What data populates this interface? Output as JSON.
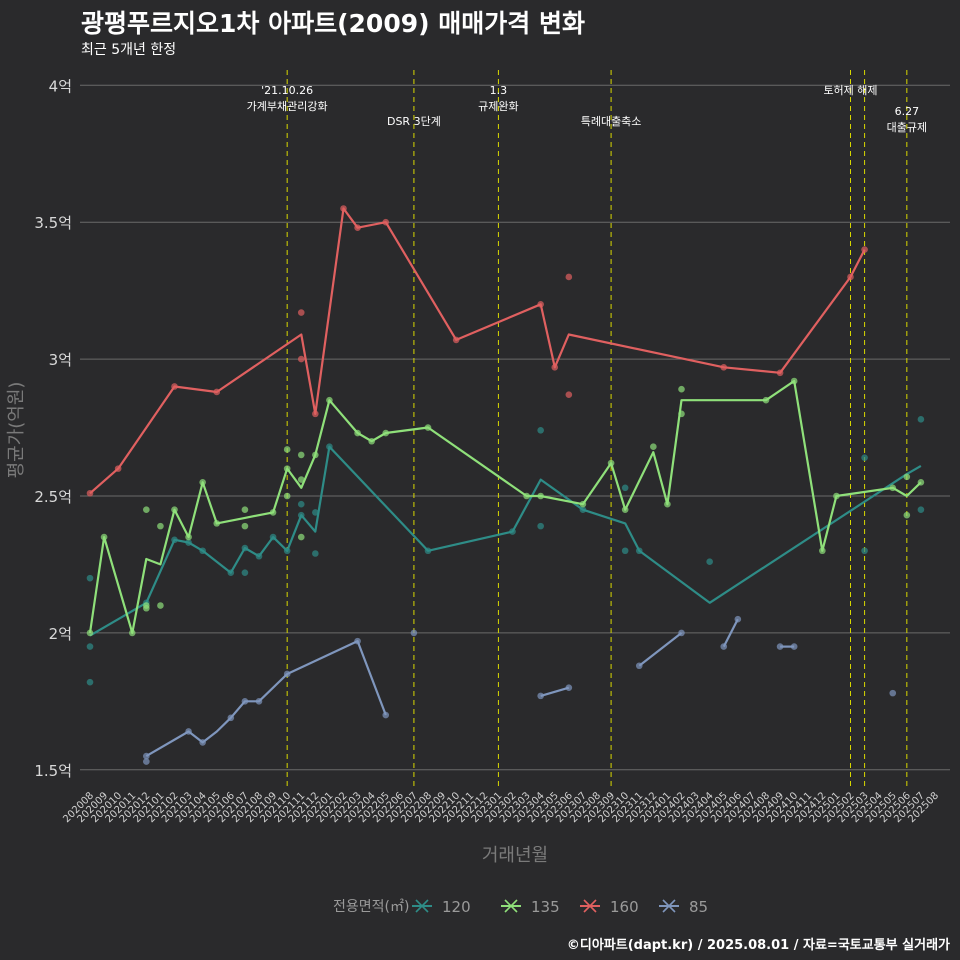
{
  "chart_data": {
    "type": "line",
    "title": "광평푸르지오1차 아파트(2009) 매매가격 변화",
    "subtitle": "최근 5개년 한정",
    "xlabel": "거래년월",
    "ylabel": "평균가(억원)",
    "caption": "©디아파트(dapt.kr) / 2025.08.01 / 자료=국토교통부 실거래가",
    "grid": true,
    "legend": {
      "title": "전용면적(㎡)",
      "position": "bottom"
    },
    "ylim": [
      1.4,
      4.05
    ],
    "yticks": [
      {
        "value": 1.5,
        "label": "1.5억"
      },
      {
        "value": 2.0,
        "label": "2억"
      },
      {
        "value": 2.5,
        "label": "2.5억"
      },
      {
        "value": 3.0,
        "label": "3억"
      },
      {
        "value": 3.5,
        "label": "3.5억"
      },
      {
        "value": 4.0,
        "label": "4억"
      }
    ],
    "x_categories": [
      "202008",
      "202009",
      "202010",
      "202011",
      "202012",
      "202101",
      "202102",
      "202103",
      "202104",
      "202105",
      "202106",
      "202107",
      "202108",
      "202109",
      "202110",
      "202111",
      "202112",
      "202201",
      "202202",
      "202203",
      "202204",
      "202205",
      "202206",
      "202207",
      "202208",
      "202209",
      "202210",
      "202211",
      "202212",
      "202301",
      "202302",
      "202303",
      "202304",
      "202305",
      "202306",
      "202307",
      "202308",
      "202309",
      "202310",
      "202311",
      "202312",
      "202401",
      "202402",
      "202403",
      "202404",
      "202405",
      "202406",
      "202407",
      "202408",
      "202409",
      "202410",
      "202411",
      "202412",
      "202501",
      "202502",
      "202503",
      "202504",
      "202505",
      "202506",
      "202507",
      "202508"
    ],
    "events": [
      {
        "x": "202110",
        "labels": [
          "'21.10.26",
          "가계부채관리강화"
        ],
        "level": 1
      },
      {
        "x": "202207",
        "labels": [
          "DSR 3단계"
        ],
        "level": 2
      },
      {
        "x": "202301",
        "labels": [
          "1.3",
          "규제완화"
        ],
        "level": 1
      },
      {
        "x": "202309",
        "labels": [
          "특례대출축소"
        ],
        "level": 2
      },
      {
        "x": "202502",
        "labels": [
          "토허제 해제"
        ],
        "level": 1
      },
      {
        "x": "202503",
        "labels": [],
        "level": 1
      },
      {
        "x": "202506",
        "labels": [
          "6.27",
          "대출규제"
        ],
        "level": 3
      }
    ],
    "series": [
      {
        "name": "120",
        "color": "#2e8c87",
        "x": [
          "202008",
          "202012",
          "202102",
          "202103",
          "202104",
          "202106",
          "202107",
          "202108",
          "202109",
          "202110",
          "202111",
          "202112",
          "202201",
          "202208",
          "202302",
          "202304",
          "202307",
          "202310",
          "202311",
          "202404",
          "202506",
          "202507"
        ],
        "values": [
          1.99,
          2.11,
          2.34,
          2.33,
          2.3,
          2.22,
          2.31,
          2.28,
          2.35,
          2.3,
          2.43,
          2.37,
          2.68,
          2.3,
          2.37,
          2.56,
          2.45,
          2.4,
          2.3,
          2.11,
          2.58,
          2.61
        ],
        "points": [
          [
            "202008",
            1.82
          ],
          [
            "202008",
            1.95
          ],
          [
            "202008",
            2.2
          ],
          [
            "202012",
            2.11
          ],
          [
            "202102",
            2.34
          ],
          [
            "202103",
            2.33
          ],
          [
            "202104",
            2.3
          ],
          [
            "202106",
            2.22
          ],
          [
            "202107",
            2.22
          ],
          [
            "202107",
            2.31
          ],
          [
            "202108",
            2.28
          ],
          [
            "202109",
            2.35
          ],
          [
            "202110",
            2.3
          ],
          [
            "202111",
            2.47
          ],
          [
            "202111",
            2.43
          ],
          [
            "202112",
            2.44
          ],
          [
            "202112",
            2.29
          ],
          [
            "202201",
            2.68
          ],
          [
            "202208",
            2.3
          ],
          [
            "202302",
            2.37
          ],
          [
            "202304",
            2.74
          ],
          [
            "202304",
            2.39
          ],
          [
            "202307",
            2.45
          ],
          [
            "202310",
            2.53
          ],
          [
            "202310",
            2.3
          ],
          [
            "202311",
            2.3
          ],
          [
            "202404",
            2.26
          ],
          [
            "202503",
            2.64
          ],
          [
            "202503",
            2.3
          ],
          [
            "202507",
            2.78
          ],
          [
            "202507",
            2.45
          ]
        ]
      },
      {
        "name": "135",
        "color": "#8fe07a",
        "x": [
          "202008",
          "202009",
          "202011",
          "202012",
          "202101",
          "202102",
          "202103",
          "202104",
          "202105",
          "202107",
          "202109",
          "202110",
          "202111",
          "202112",
          "202201",
          "202203",
          "202204",
          "202205",
          "202208",
          "202303",
          "202304",
          "202307",
          "202309",
          "202310",
          "202312",
          "202401",
          "202402",
          "202408",
          "202410",
          "202412",
          "202501",
          "202505",
          "202506",
          "202507"
        ],
        "values": [
          2.0,
          2.35,
          2.0,
          2.27,
          2.25,
          2.45,
          2.35,
          2.55,
          2.4,
          2.42,
          2.44,
          2.6,
          2.53,
          2.65,
          2.85,
          2.73,
          2.7,
          2.73,
          2.75,
          2.5,
          2.5,
          2.47,
          2.62,
          2.45,
          2.66,
          2.47,
          2.85,
          2.85,
          2.92,
          2.3,
          2.5,
          2.53,
          2.5,
          2.55
        ],
        "points": [
          [
            "202008",
            2.0
          ],
          [
            "202009",
            2.35
          ],
          [
            "202011",
            2.0
          ],
          [
            "202012",
            2.1
          ],
          [
            "202012",
            2.09
          ],
          [
            "202012",
            2.45
          ],
          [
            "202101",
            2.39
          ],
          [
            "202101",
            2.1
          ],
          [
            "202102",
            2.45
          ],
          [
            "202103",
            2.35
          ],
          [
            "202104",
            2.55
          ],
          [
            "202105",
            2.4
          ],
          [
            "202107",
            2.39
          ],
          [
            "202107",
            2.45
          ],
          [
            "202109",
            2.44
          ],
          [
            "202110",
            2.67
          ],
          [
            "202110",
            2.5
          ],
          [
            "202110",
            2.6
          ],
          [
            "202111",
            2.35
          ],
          [
            "202111",
            2.56
          ],
          [
            "202111",
            2.65
          ],
          [
            "202112",
            2.65
          ],
          [
            "202201",
            2.85
          ],
          [
            "202203",
            2.73
          ],
          [
            "202204",
            2.7
          ],
          [
            "202205",
            2.73
          ],
          [
            "202208",
            2.75
          ],
          [
            "202303",
            2.5
          ],
          [
            "202304",
            2.5
          ],
          [
            "202307",
            2.47
          ],
          [
            "202309",
            2.62
          ],
          [
            "202310",
            2.45
          ],
          [
            "202312",
            2.68
          ],
          [
            "202401",
            2.47
          ],
          [
            "202402",
            2.89
          ],
          [
            "202402",
            2.8
          ],
          [
            "202408",
            2.85
          ],
          [
            "202410",
            2.92
          ],
          [
            "202412",
            2.3
          ],
          [
            "202501",
            2.5
          ],
          [
            "202505",
            2.53
          ],
          [
            "202506",
            2.57
          ],
          [
            "202506",
            2.43
          ],
          [
            "202507",
            2.55
          ]
        ]
      },
      {
        "name": "160",
        "color": "#e06060",
        "x": [
          "202008",
          "202010",
          "202102",
          "202105",
          "202111",
          "202112",
          "202202",
          "202203",
          "202205",
          "202210",
          "202304",
          "202305",
          "202306",
          "202405",
          "202409",
          "202502",
          "202503"
        ],
        "values": [
          2.51,
          2.6,
          2.9,
          2.88,
          3.09,
          2.8,
          3.55,
          3.48,
          3.5,
          3.07,
          3.2,
          2.97,
          3.09,
          2.97,
          2.95,
          3.3,
          3.4
        ],
        "points": [
          [
            "202008",
            2.51
          ],
          [
            "202010",
            2.6
          ],
          [
            "202102",
            2.9
          ],
          [
            "202105",
            2.88
          ],
          [
            "202111",
            3.17
          ],
          [
            "202111",
            3.0
          ],
          [
            "202112",
            2.8
          ],
          [
            "202202",
            3.55
          ],
          [
            "202203",
            3.48
          ],
          [
            "202205",
            3.5
          ],
          [
            "202210",
            3.07
          ],
          [
            "202304",
            3.2
          ],
          [
            "202305",
            2.97
          ],
          [
            "202306",
            3.3
          ],
          [
            "202306",
            2.87
          ],
          [
            "202405",
            2.97
          ],
          [
            "202409",
            2.95
          ],
          [
            "202502",
            3.3
          ],
          [
            "202503",
            3.4
          ]
        ]
      },
      {
        "name": "85",
        "color": "#7f96bd",
        "segments": [
          {
            "x": [
              "202012",
              "202103",
              "202104",
              "202105",
              "202106",
              "202107",
              "202108",
              "202110",
              "202203",
              "202205"
            ],
            "values": [
              1.55,
              1.64,
              1.6,
              1.64,
              1.69,
              1.75,
              1.75,
              1.85,
              1.97,
              1.7
            ]
          },
          {
            "x": [
              "202304",
              "202306"
            ],
            "values": [
              1.77,
              1.8
            ]
          },
          {
            "x": [
              "202311",
              "202402"
            ],
            "values": [
              1.88,
              2.0
            ]
          },
          {
            "x": [
              "202405",
              "202406"
            ],
            "values": [
              1.95,
              2.05
            ]
          },
          {
            "x": [
              "202409",
              "202410"
            ],
            "values": [
              1.95,
              1.95
            ]
          }
        ],
        "points": [
          [
            "202012",
            1.53
          ],
          [
            "202012",
            1.55
          ],
          [
            "202103",
            1.64
          ],
          [
            "202104",
            1.6
          ],
          [
            "202106",
            1.69
          ],
          [
            "202107",
            1.75
          ],
          [
            "202108",
            1.75
          ],
          [
            "202110",
            1.85
          ],
          [
            "202203",
            1.97
          ],
          [
            "202205",
            1.7
          ],
          [
            "202207",
            2.0
          ],
          [
            "202304",
            1.77
          ],
          [
            "202306",
            1.8
          ],
          [
            "202311",
            1.88
          ],
          [
            "202402",
            2.0
          ],
          [
            "202405",
            1.95
          ],
          [
            "202406",
            2.05
          ],
          [
            "202409",
            1.95
          ],
          [
            "202410",
            1.95
          ],
          [
            "202505",
            1.78
          ]
        ]
      }
    ]
  }
}
